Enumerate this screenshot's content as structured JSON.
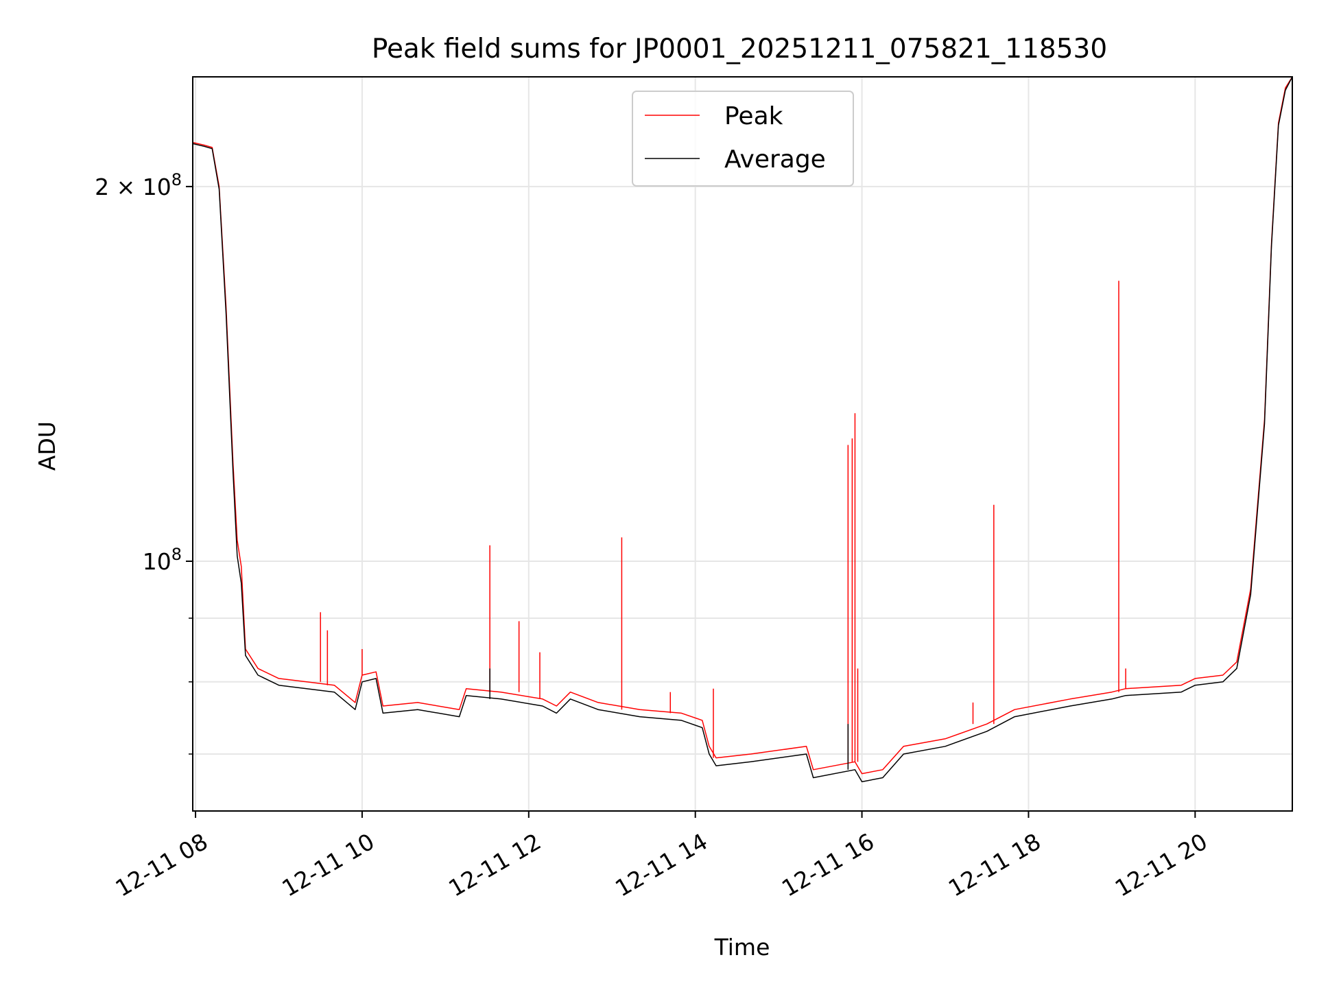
{
  "chart_data": {
    "type": "line",
    "title": "Peak field sums for JP0001_20251211_075821_118530",
    "xlabel": "Time",
    "ylabel": "ADU",
    "yscale": "log",
    "grid": true,
    "legend_position": "upper center",
    "xlim": [
      "2025-12-11 07:58",
      "2025-12-11 21:10"
    ],
    "ylim": [
      63000000,
      245000000
    ],
    "x_ticks": [
      {
        "x": "2025-12-11 08:00",
        "label": "12-11 08"
      },
      {
        "x": "2025-12-11 10:00",
        "label": "12-11 10"
      },
      {
        "x": "2025-12-11 12:00",
        "label": "12-11 12"
      },
      {
        "x": "2025-12-11 14:00",
        "label": "12-11 14"
      },
      {
        "x": "2025-12-11 16:00",
        "label": "12-11 16"
      },
      {
        "x": "2025-12-11 18:00",
        "label": "12-11 18"
      },
      {
        "x": "2025-12-11 20:00",
        "label": "12-11 20"
      }
    ],
    "y_major_ticks": [
      {
        "y": 100000000,
        "base": "10",
        "exp": "8",
        "coef": ""
      },
      {
        "y": 200000000,
        "base": "10",
        "exp": "8",
        "coef": "2 × "
      }
    ],
    "y_minor_ticks": [
      70000000,
      80000000,
      90000000
    ],
    "series": [
      {
        "name": "Peak",
        "color": "#ff0000",
        "points": [
          [
            "2025-12-11 07:58",
            217000000
          ],
          [
            "2025-12-11 08:06",
            216000000
          ],
          [
            "2025-12-11 08:12",
            215000000
          ],
          [
            "2025-12-11 08:17",
            200000000
          ],
          [
            "2025-12-11 08:22",
            160000000
          ],
          [
            "2025-12-11 08:27",
            120000000
          ],
          [
            "2025-12-11 08:30",
            104000000
          ],
          [
            "2025-12-11 08:33",
            99000000
          ],
          [
            "2025-12-11 08:36",
            85000000
          ],
          [
            "2025-12-11 08:45",
            82000000
          ],
          [
            "2025-12-11 09:00",
            80500000
          ],
          [
            "2025-12-11 09:20",
            80000000
          ],
          [
            "2025-12-11 09:40",
            79500000
          ],
          [
            "2025-12-11 09:55",
            77000000
          ],
          [
            "2025-12-11 10:00",
            81000000
          ],
          [
            "2025-12-11 10:10",
            81500000
          ],
          [
            "2025-12-11 10:15",
            76500000
          ],
          [
            "2025-12-11 10:40",
            77000000
          ],
          [
            "2025-12-11 11:10",
            76000000
          ],
          [
            "2025-12-11 11:15",
            79000000
          ],
          [
            "2025-12-11 11:40",
            78500000
          ],
          [
            "2025-12-11 12:10",
            77500000
          ],
          [
            "2025-12-11 12:20",
            76500000
          ],
          [
            "2025-12-11 12:30",
            78500000
          ],
          [
            "2025-12-11 12:50",
            77000000
          ],
          [
            "2025-12-11 13:20",
            76000000
          ],
          [
            "2025-12-11 13:50",
            75500000
          ],
          [
            "2025-12-11 14:05",
            74500000
          ],
          [
            "2025-12-11 14:10",
            71000000
          ],
          [
            "2025-12-11 14:15",
            69500000
          ],
          [
            "2025-12-11 14:40",
            70000000
          ],
          [
            "2025-12-11 15:20",
            71000000
          ],
          [
            "2025-12-11 15:25",
            68000000
          ],
          [
            "2025-12-11 15:55",
            69000000
          ],
          [
            "2025-12-11 16:00",
            67500000
          ],
          [
            "2025-12-11 16:15",
            68000000
          ],
          [
            "2025-12-11 16:30",
            71000000
          ],
          [
            "2025-12-11 17:00",
            72000000
          ],
          [
            "2025-12-11 17:30",
            74000000
          ],
          [
            "2025-12-11 17:50",
            76000000
          ],
          [
            "2025-12-11 18:30",
            77500000
          ],
          [
            "2025-12-11 19:00",
            78500000
          ],
          [
            "2025-12-11 19:10",
            79000000
          ],
          [
            "2025-12-11 19:50",
            79500000
          ],
          [
            "2025-12-11 20:00",
            80500000
          ],
          [
            "2025-12-11 20:20",
            81000000
          ],
          [
            "2025-12-11 20:30",
            83000000
          ],
          [
            "2025-12-11 20:40",
            95000000
          ],
          [
            "2025-12-11 20:50",
            130000000
          ],
          [
            "2025-12-11 20:55",
            180000000
          ],
          [
            "2025-12-11 21:00",
            225000000
          ],
          [
            "2025-12-11 21:05",
            240000000
          ],
          [
            "2025-12-11 21:10",
            245000000
          ]
        ],
        "spikes": [
          [
            "2025-12-11 09:30",
            91000000
          ],
          [
            "2025-12-11 09:35",
            88000000
          ],
          [
            "2025-12-11 10:00",
            85000000
          ],
          [
            "2025-12-11 11:32",
            103000000
          ],
          [
            "2025-12-11 11:53",
            89500000
          ],
          [
            "2025-12-11 12:08",
            84500000
          ],
          [
            "2025-12-11 13:07",
            104500000
          ],
          [
            "2025-12-11 13:42",
            78500000
          ],
          [
            "2025-12-11 14:13",
            79000000
          ],
          [
            "2025-12-11 15:50",
            124000000
          ],
          [
            "2025-12-11 15:53",
            125500000
          ],
          [
            "2025-12-11 15:55",
            131500000
          ],
          [
            "2025-12-11 15:57",
            82000000
          ],
          [
            "2025-12-11 17:20",
            77000000
          ],
          [
            "2025-12-11 17:35",
            111000000
          ],
          [
            "2025-12-11 19:05",
            168000000
          ],
          [
            "2025-12-11 19:10",
            82000000
          ]
        ]
      },
      {
        "name": "Average",
        "color": "#000000",
        "points": [
          [
            "2025-12-11 07:58",
            216500000
          ],
          [
            "2025-12-11 08:06",
            215500000
          ],
          [
            "2025-12-11 08:12",
            214500000
          ],
          [
            "2025-12-11 08:17",
            199000000
          ],
          [
            "2025-12-11 08:22",
            158000000
          ],
          [
            "2025-12-11 08:27",
            118000000
          ],
          [
            "2025-12-11 08:30",
            101000000
          ],
          [
            "2025-12-11 08:33",
            96000000
          ],
          [
            "2025-12-11 08:36",
            84000000
          ],
          [
            "2025-12-11 08:45",
            81000000
          ],
          [
            "2025-12-11 09:00",
            79500000
          ],
          [
            "2025-12-11 09:20",
            79000000
          ],
          [
            "2025-12-11 09:40",
            78500000
          ],
          [
            "2025-12-11 09:55",
            76000000
          ],
          [
            "2025-12-11 10:00",
            80000000
          ],
          [
            "2025-12-11 10:10",
            80500000
          ],
          [
            "2025-12-11 10:15",
            75500000
          ],
          [
            "2025-12-11 10:40",
            76000000
          ],
          [
            "2025-12-11 11:10",
            75000000
          ],
          [
            "2025-12-11 11:15",
            78000000
          ],
          [
            "2025-12-11 11:40",
            77500000
          ],
          [
            "2025-12-11 12:10",
            76500000
          ],
          [
            "2025-12-11 12:20",
            75500000
          ],
          [
            "2025-12-11 12:30",
            77500000
          ],
          [
            "2025-12-11 12:50",
            76000000
          ],
          [
            "2025-12-11 13:20",
            75000000
          ],
          [
            "2025-12-11 13:50",
            74500000
          ],
          [
            "2025-12-11 14:05",
            73500000
          ],
          [
            "2025-12-11 14:10",
            70000000
          ],
          [
            "2025-12-11 14:15",
            68500000
          ],
          [
            "2025-12-11 14:40",
            69000000
          ],
          [
            "2025-12-11 15:20",
            70000000
          ],
          [
            "2025-12-11 15:25",
            67000000
          ],
          [
            "2025-12-11 15:55",
            68000000
          ],
          [
            "2025-12-11 16:00",
            66500000
          ],
          [
            "2025-12-11 16:15",
            67000000
          ],
          [
            "2025-12-11 16:30",
            70000000
          ],
          [
            "2025-12-11 17:00",
            71000000
          ],
          [
            "2025-12-11 17:30",
            73000000
          ],
          [
            "2025-12-11 17:50",
            75000000
          ],
          [
            "2025-12-11 18:30",
            76500000
          ],
          [
            "2025-12-11 19:00",
            77500000
          ],
          [
            "2025-12-11 19:10",
            78000000
          ],
          [
            "2025-12-11 19:50",
            78500000
          ],
          [
            "2025-12-11 20:00",
            79500000
          ],
          [
            "2025-12-11 20:20",
            80000000
          ],
          [
            "2025-12-11 20:30",
            82000000
          ],
          [
            "2025-12-11 20:40",
            94000000
          ],
          [
            "2025-12-11 20:50",
            129000000
          ],
          [
            "2025-12-11 20:55",
            179000000
          ],
          [
            "2025-12-11 21:00",
            224000000
          ],
          [
            "2025-12-11 21:05",
            239000000
          ],
          [
            "2025-12-11 21:10",
            245000000
          ]
        ],
        "spikes": [
          [
            "2025-12-11 11:32",
            82000000
          ],
          [
            "2025-12-11 15:50",
            74000000
          ]
        ]
      }
    ]
  }
}
